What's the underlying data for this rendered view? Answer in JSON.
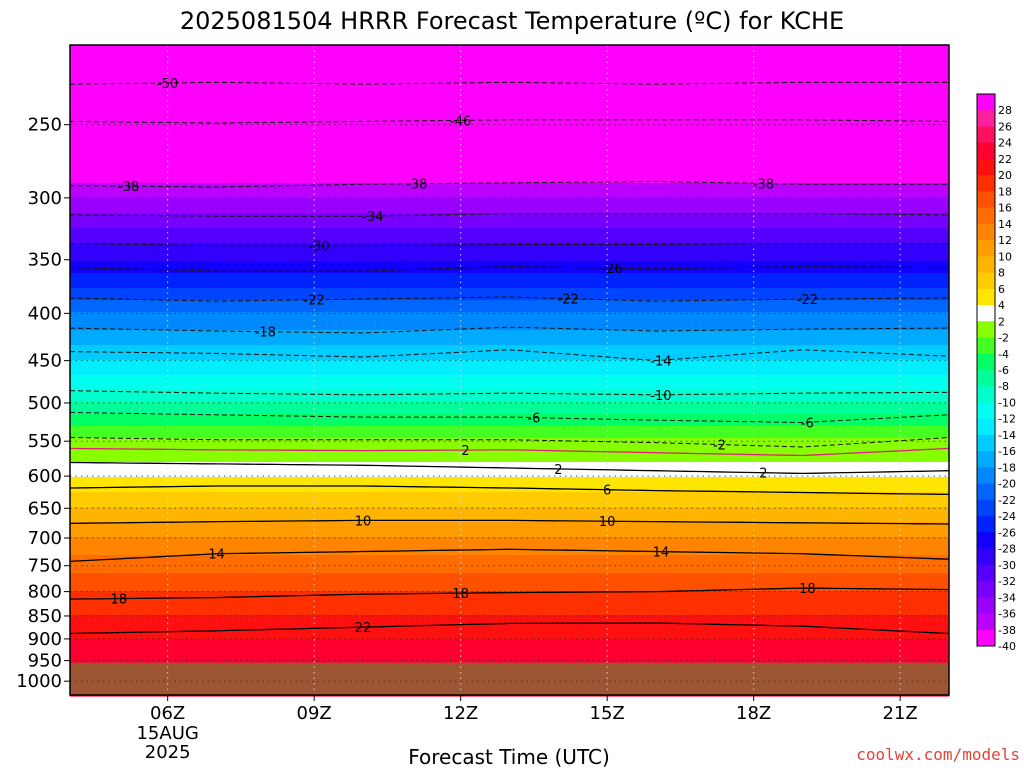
{
  "chart_data": {
    "type": "heatmap",
    "title": "2025081504 HRRR Forecast Temperature (ºC) for KCHE",
    "xlabel": "Forecast Time (UTC)",
    "ylabel": "",
    "credit": "coolwx.com/models",
    "x_ticks": [
      {
        "label": "06Z",
        "hour": 6,
        "sub": [
          "15AUG",
          "2025"
        ]
      },
      {
        "label": "09Z",
        "hour": 9
      },
      {
        "label": "12Z",
        "hour": 12
      },
      {
        "label": "15Z",
        "hour": 15
      },
      {
        "label": "18Z",
        "hour": 18
      },
      {
        "label": "21Z",
        "hour": 21
      }
    ],
    "xlim_hours": [
      4.0,
      22.0
    ],
    "y_axis": {
      "scale": "log-pressure",
      "unit": "hPa",
      "ylim": [
        1035,
        205
      ],
      "ticks": [
        250,
        300,
        350,
        400,
        450,
        500,
        550,
        600,
        650,
        700,
        750,
        800,
        850,
        900,
        950,
        1000
      ]
    },
    "surface_pressure_hpa": 955,
    "grid": true,
    "colorbar": {
      "labels": [
        "28",
        "26",
        "24",
        "22",
        "20",
        "18",
        "16",
        "14",
        "12",
        "10",
        "8",
        "6",
        "4",
        "2",
        "-2",
        "-4",
        "-6",
        "-8",
        "-10",
        "-12",
        "-14",
        "-16",
        "-18",
        "-20",
        "-22",
        "-24",
        "-26",
        "-28",
        "-30",
        "-32",
        "-34",
        "-36",
        "-38",
        "-40"
      ],
      "colors": [
        "#ff00ff",
        "#ff1f9f",
        "#ff1060",
        "#ff0030",
        "#ff1010",
        "#ff3000",
        "#ff5000",
        "#ff6c00",
        "#ff8400",
        "#ff9c00",
        "#ffb400",
        "#ffcc00",
        "#ffe600",
        "#ffffff",
        "#88ff00",
        "#44ff22",
        "#00ff66",
        "#00ff99",
        "#00ffcc",
        "#00ffee",
        "#00eeff",
        "#00ccff",
        "#00aaff",
        "#0088ff",
        "#0066ff",
        "#0044ff",
        "#0022ff",
        "#1100ff",
        "#3300ff",
        "#5500ff",
        "#7700ff",
        "#9900ff",
        "#bb00ff",
        "#ff00ff"
      ]
    },
    "contours": [
      {
        "value": 22,
        "type": "solid",
        "pressure": [
          888,
          882,
          874,
          866,
          865,
          872,
          888
        ],
        "label_hour": 10.0
      },
      {
        "value": 18,
        "type": "solid",
        "pressure": [
          815,
          812,
          805,
          802,
          800,
          793,
          796
        ],
        "label_hour": 5.0
      },
      {
        "value": 14,
        "type": "solid",
        "pressure": [
          742,
          728,
          724,
          720,
          724,
          728,
          738
        ],
        "label_hour": 7.0
      },
      {
        "value": 10,
        "type": "solid",
        "pressure": [
          675,
          672,
          670,
          670,
          672,
          674,
          676
        ],
        "label_hour": 10.0
      },
      {
        "value": 6,
        "type": "solid",
        "pressure": [
          618,
          615,
          615,
          618,
          622,
          625,
          628
        ],
        "label_hour": 15.0
      },
      {
        "value": 2,
        "type": "solid",
        "pressure": [
          580,
          582,
          584,
          588,
          592,
          596,
          592
        ],
        "label_hour": 14.0
      },
      {
        "value": 2,
        "type": "magenta",
        "pressure": [
          560,
          562,
          563,
          562,
          566,
          570,
          560
        ],
        "label_hour": 12.1
      },
      {
        "value": -2,
        "type": "dashed",
        "pressure": [
          545,
          548,
          548,
          548,
          552,
          558,
          545
        ],
        "label_hour": 17.3
      },
      {
        "value": -6,
        "type": "dashed",
        "pressure": [
          512,
          515,
          518,
          518,
          522,
          525,
          515
        ],
        "label_hour": 13.5
      },
      {
        "value": -10,
        "type": "dashed",
        "pressure": [
          485,
          488,
          490,
          488,
          490,
          488,
          487
        ],
        "label_hour": 16.1
      },
      {
        "value": -14,
        "type": "dashed",
        "pressure": [
          440,
          442,
          446,
          438,
          450,
          438,
          445
        ],
        "label_hour": 16.1
      },
      {
        "value": -18,
        "type": "dashed",
        "pressure": [
          415,
          418,
          420,
          414,
          418,
          416,
          415
        ],
        "label_hour": 8.0
      },
      {
        "value": -22,
        "type": "dashed",
        "pressure": [
          385,
          388,
          386,
          384,
          388,
          386,
          385
        ],
        "label_hour": 9.0
      },
      {
        "value": -26,
        "type": "dashed",
        "pressure": [
          357,
          360,
          360,
          356,
          358,
          356,
          357
        ],
        "label_hour": 15.1
      },
      {
        "value": -30,
        "type": "dashed",
        "pressure": [
          336,
          338,
          338,
          337,
          337,
          336,
          336
        ],
        "label_hour": 9.1
      },
      {
        "value": -34,
        "type": "dashed",
        "pressure": [
          313,
          314,
          314,
          312,
          312,
          312,
          313
        ],
        "label_hour": 10.2
      },
      {
        "value": -38,
        "type": "dashed",
        "pressure": [
          291,
          292,
          290,
          289,
          288,
          290,
          290
        ],
        "label_hour": 5.2
      },
      {
        "value": -46,
        "type": "dashed",
        "pressure": [
          248,
          249,
          248,
          247,
          247,
          247,
          248
        ],
        "label_hour": 12.0
      },
      {
        "value": -50,
        "type": "dashed",
        "pressure": [
          226,
          225,
          226,
          225,
          226,
          225,
          225
        ],
        "label_hour": 6.0
      }
    ],
    "extra_labels": [
      {
        "value": -38,
        "hour": 11.1
      },
      {
        "value": -38,
        "hour": 18.2
      },
      {
        "value": -22,
        "hour": 14.2
      },
      {
        "value": -22,
        "hour": 19.1
      },
      {
        "value": -6,
        "hour": 19.1
      },
      {
        "value": 2,
        "hour": 18.2
      },
      {
        "value": 10,
        "hour": 15.0
      },
      {
        "value": 14,
        "hour": 16.1
      },
      {
        "value": 18,
        "hour": 12.0
      },
      {
        "value": 18,
        "hour": 19.1
      }
    ],
    "temperature_anchors": [
      {
        "p": 1030,
        "t": 23
      },
      {
        "p": 955,
        "t": 23
      },
      {
        "p": 900,
        "t": 22
      },
      {
        "p": 850,
        "t": 20
      },
      {
        "p": 800,
        "t": 18
      },
      {
        "p": 750,
        "t": 15
      },
      {
        "p": 700,
        "t": 12
      },
      {
        "p": 650,
        "t": 8
      },
      {
        "p": 600,
        "t": 4
      },
      {
        "p": 580,
        "t": 2
      },
      {
        "p": 560,
        "t": 0
      },
      {
        "p": 545,
        "t": -2
      },
      {
        "p": 500,
        "t": -8
      },
      {
        "p": 450,
        "t": -14
      },
      {
        "p": 400,
        "t": -20
      },
      {
        "p": 350,
        "t": -28
      },
      {
        "p": 300,
        "t": -36
      },
      {
        "p": 250,
        "t": -46
      },
      {
        "p": 205,
        "t": -54
      }
    ]
  }
}
